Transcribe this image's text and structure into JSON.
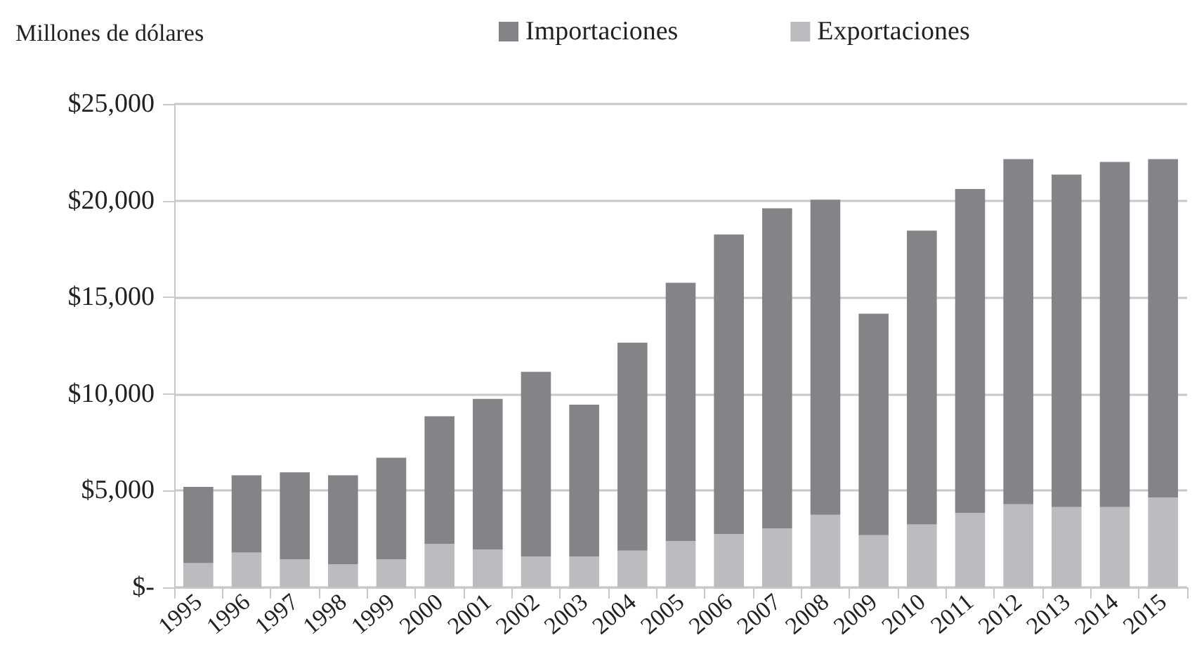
{
  "chart_data": {
    "type": "bar",
    "stacked": true,
    "ylabel": "Millones de dólares",
    "categories": [
      "1995",
      "1996",
      "1997",
      "1998",
      "1999",
      "2000",
      "2001",
      "2002",
      "2003",
      "2004",
      "2005",
      "2006",
      "2007",
      "2008",
      "2009",
      "2010",
      "2011",
      "2012",
      "2013",
      "2014",
      "2015"
    ],
    "series": [
      {
        "name": "Exportaciones",
        "color": "#bbbcc0",
        "values": [
          1250,
          1800,
          1450,
          1200,
          1450,
          2250,
          1950,
          1600,
          1600,
          1900,
          2400,
          2750,
          3050,
          3750,
          2700,
          3250,
          3850,
          4300,
          4150,
          4150,
          4650
        ]
      },
      {
        "name": "Importaciones",
        "color": "#838488",
        "values": [
          3950,
          4000,
          4500,
          4600,
          5250,
          6600,
          7800,
          9550,
          7850,
          10750,
          13350,
          15500,
          16550,
          16300,
          11450,
          15200,
          16750,
          17850,
          17200,
          17850,
          17500
        ]
      }
    ],
    "ylim": [
      0,
      25000
    ],
    "yticks": [
      {
        "value": 0,
        "label": "$-"
      },
      {
        "value": 5000,
        "label": "$5,000"
      },
      {
        "value": 10000,
        "label": "$10,000"
      },
      {
        "value": 15000,
        "label": "$15,000"
      },
      {
        "value": 20000,
        "label": "$20,000"
      },
      {
        "value": 25000,
        "label": "$25,000"
      }
    ],
    "grid": "y",
    "legend": "top"
  }
}
